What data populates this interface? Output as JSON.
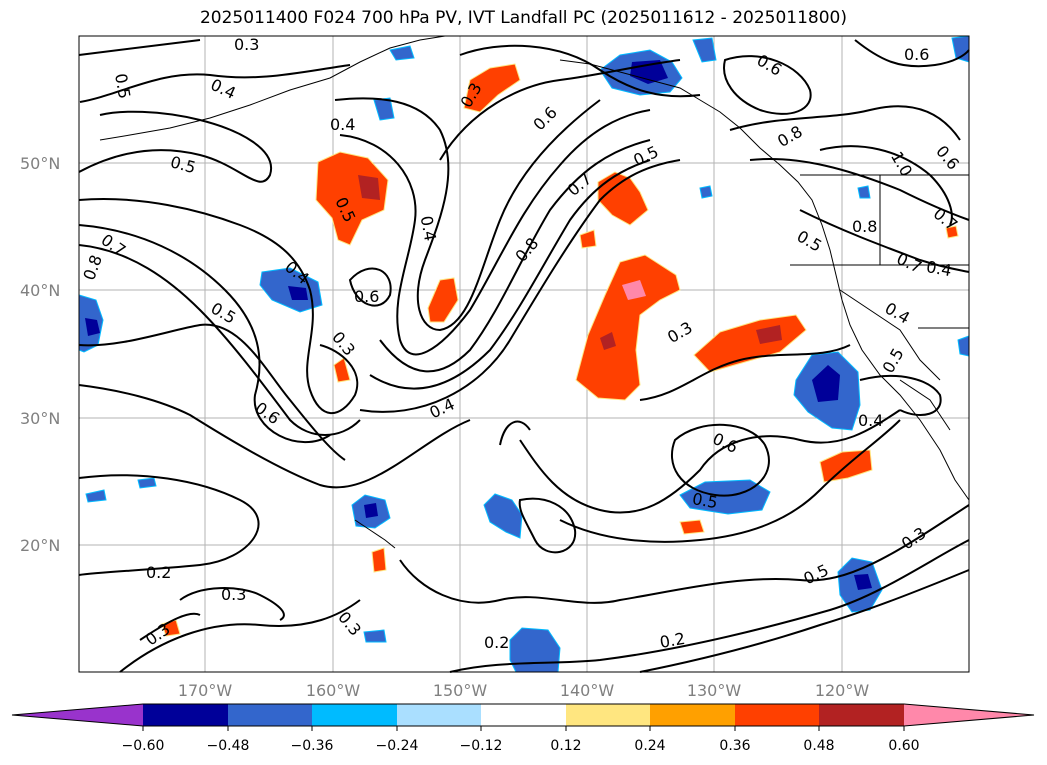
{
  "title": "2025011400 F024 700 hPa PV, IVT Landfall PC (2025011612 - 2025011800)",
  "lat_labels": [
    "50°N",
    "40°N",
    "30°N",
    "20°N"
  ],
  "lon_labels": [
    "170°W",
    "160°W",
    "150°W",
    "140°W",
    "130°W",
    "120°W"
  ],
  "colorbar": {
    "colors": [
      "#9933cc",
      "#000099",
      "#3366cc",
      "#00bbff",
      "#aadfff",
      "#ffffff",
      "#ffe680",
      "#ffa000",
      "#ff4000",
      "#b22222",
      "#ff88aa"
    ],
    "tick_labels": [
      "−0.60",
      "−0.48",
      "−0.36",
      "−0.24",
      "−0.12",
      "0.12",
      "0.24",
      "0.36",
      "0.48",
      "0.60"
    ]
  },
  "contour_labels": [
    "0.3",
    "0.5",
    "0.4",
    "0.4",
    "0.3",
    "0.6",
    "0.4",
    "0.6",
    "0.5",
    "0.5",
    "0.5",
    "0.7",
    "0.8",
    "0.4",
    "0.4",
    "0.7",
    "0.6",
    "0.8",
    "0.8",
    "0.5",
    "0.6",
    "0.5",
    "0.4",
    "0.3",
    "0.6",
    "0.3",
    "0.6",
    "0.4",
    "0.7",
    "0.5",
    "0.4",
    "0.5",
    "0.2",
    "0.3",
    "0.3",
    "0.3",
    "0.2",
    "0.2",
    "0.5",
    "0.3",
    "0.6",
    "1.0",
    "0.8",
    "0.7"
  ]
}
